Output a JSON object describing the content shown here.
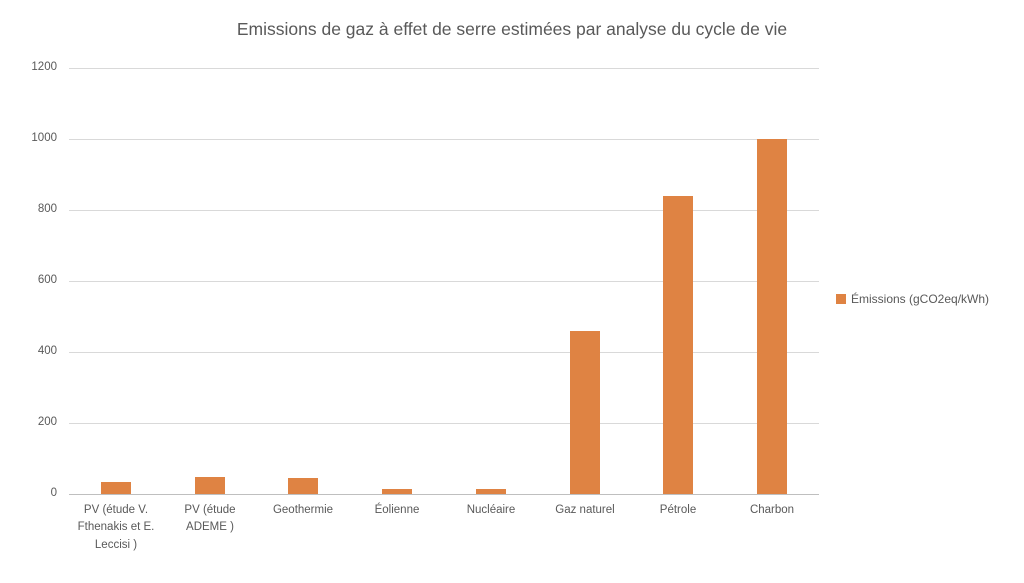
{
  "chart_data": {
    "type": "bar",
    "title": "Emissions de gaz à effet de serre estimées par analyse du cycle de vie",
    "categories": [
      "PV (étude V. Fthenakis et E. Leccisi )",
      "PV (étude ADEME )",
      "Geothermie",
      "Éolienne",
      "Nucléaire",
      "Gaz naturel",
      "Pétrole",
      "Charbon"
    ],
    "series": [
      {
        "name": "Émissions (gCO2eq/kWh)",
        "values": [
          33,
          47,
          45,
          15,
          15,
          460,
          840,
          1000
        ]
      }
    ],
    "xlabel": "",
    "ylabel": "",
    "ylim": [
      0,
      1200
    ],
    "yticks": [
      0,
      200,
      400,
      600,
      800,
      1000,
      1200
    ],
    "grid": true,
    "legend_position": "right"
  },
  "colors": {
    "bar": "#df8343",
    "gridline": "#d9d9d9",
    "axis_line": "#bfbfbf",
    "text": "#595959",
    "background": "#ffffff"
  }
}
